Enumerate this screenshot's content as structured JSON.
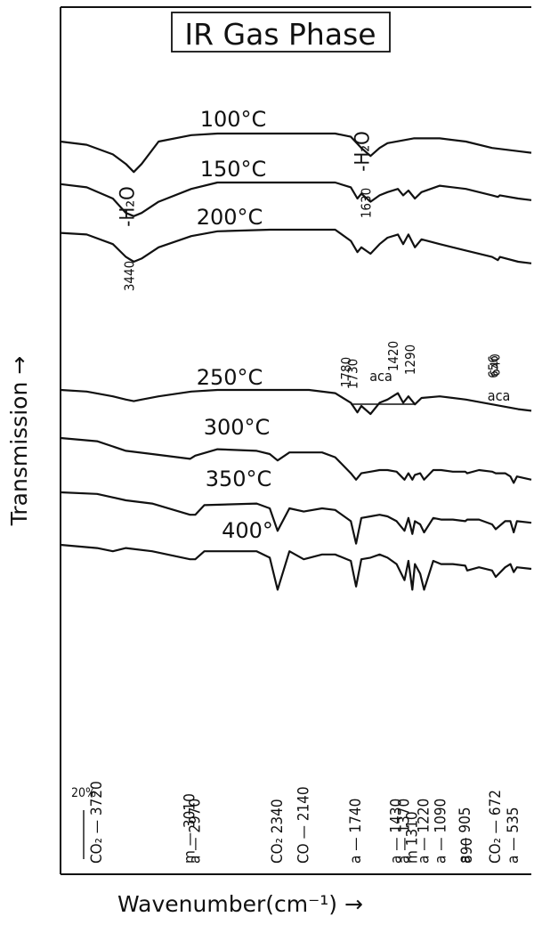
{
  "chart_data": {
    "type": "line",
    "title": "IR Gas Phase",
    "xlabel": "Wavenumber(cm⁻¹) →",
    "ylabel": "Transmission →",
    "xlim": [
      4000,
      400
    ],
    "scale_note": "20%",
    "series": [
      {
        "name": "100°C",
        "x": [
          4000,
          3800,
          3600,
          3500,
          3440,
          3380,
          3250,
          3000,
          2800,
          2400,
          2100,
          1900,
          1780,
          1700,
          1630,
          1560,
          1500,
          1300,
          1100,
          900,
          700,
          500,
          400
        ],
        "y": [
          84,
          82,
          76,
          70,
          65,
          70,
          84,
          88,
          89,
          89,
          89,
          89,
          87,
          80,
          75,
          80,
          83,
          86,
          86,
          84,
          80,
          78,
          77
        ]
      },
      {
        "name": "150°C",
        "x": [
          4000,
          3800,
          3600,
          3500,
          3440,
          3380,
          3250,
          3000,
          2800,
          2400,
          2100,
          1900,
          1780,
          1730,
          1700,
          1630,
          1560,
          1500,
          1420,
          1380,
          1340,
          1290,
          1240,
          1100,
          900,
          700,
          656,
          640,
          500,
          400
        ],
        "y": [
          75,
          73,
          66,
          57,
          55,
          57,
          64,
          72,
          76,
          76,
          76,
          76,
          73,
          66,
          69,
          64,
          68,
          70,
          72,
          68,
          71,
          66,
          70,
          74,
          72,
          68,
          67,
          68,
          66,
          65
        ]
      },
      {
        "name": "200°C",
        "x": [
          4000,
          3800,
          3600,
          3500,
          3440,
          3380,
          3250,
          3000,
          2800,
          2400,
          2100,
          1900,
          1780,
          1730,
          1700,
          1630,
          1560,
          1500,
          1420,
          1380,
          1340,
          1290,
          1240,
          1100,
          900,
          700,
          656,
          640,
          500,
          400
        ],
        "y": [
          67,
          66,
          60,
          52,
          49,
          51,
          58,
          65,
          68,
          69,
          69,
          69,
          62,
          55,
          58,
          54,
          60,
          64,
          66,
          60,
          66,
          58,
          63,
          60,
          56,
          52,
          50,
          52,
          49,
          48
        ]
      },
      {
        "name": "250°C",
        "x": [
          4000,
          3800,
          3600,
          3500,
          3440,
          3380,
          3250,
          3000,
          2800,
          2400,
          2100,
          1900,
          1780,
          1730,
          1700,
          1630,
          1560,
          1500,
          1420,
          1380,
          1340,
          1290,
          1240,
          1100,
          900,
          700,
          500,
          400
        ],
        "y": [
          46,
          45,
          42,
          40,
          39,
          40,
          42,
          45,
          46,
          46,
          46,
          44,
          38,
          32,
          36,
          31,
          38,
          40,
          44,
          38,
          42,
          37,
          41,
          42,
          40,
          37,
          34,
          33
        ]
      },
      {
        "name": "300°C",
        "x": [
          4000,
          3720,
          3500,
          3300,
          3010,
          2970,
          2800,
          2500,
          2400,
          2340,
          2250,
          2140,
          2000,
          1900,
          1780,
          1740,
          1700,
          1630,
          1560,
          1500,
          1430,
          1370,
          1340,
          1310,
          1290,
          1250,
          1220,
          1150,
          1090,
          1000,
          905,
          890,
          800,
          700,
          672,
          600,
          560,
          535,
          510,
          400
        ],
        "y": [
          40,
          38,
          32,
          30,
          27,
          29,
          33,
          32,
          30,
          26,
          31,
          31,
          31,
          28,
          18,
          14,
          18,
          19,
          20,
          20,
          19,
          14,
          18,
          14,
          17,
          18,
          14,
          20,
          20,
          19,
          19,
          18,
          20,
          19,
          18,
          18,
          16,
          12,
          16,
          14
        ]
      },
      {
        "name": "350°C",
        "x": [
          4000,
          3720,
          3500,
          3300,
          3010,
          2970,
          2900,
          2500,
          2400,
          2340,
          2250,
          2140,
          2000,
          1900,
          1780,
          1740,
          1700,
          1630,
          1560,
          1500,
          1430,
          1370,
          1340,
          1310,
          1290,
          1250,
          1220,
          1150,
          1090,
          1000,
          905,
          890,
          800,
          700,
          672,
          600,
          560,
          535,
          510,
          400
        ],
        "y": [
          30,
          29,
          25,
          23,
          16,
          16,
          22,
          23,
          20,
          6,
          20,
          18,
          20,
          19,
          12,
          -2,
          14,
          15,
          16,
          15,
          12,
          6,
          14,
          4,
          12,
          10,
          5,
          14,
          13,
          13,
          12,
          13,
          13,
          10,
          7,
          12,
          12,
          5,
          12,
          11
        ]
      },
      {
        "name": "400°",
        "x": [
          4000,
          3720,
          3600,
          3500,
          3300,
          3010,
          2970,
          2900,
          2500,
          2400,
          2340,
          2250,
          2140,
          2000,
          1900,
          1780,
          1740,
          1700,
          1630,
          1560,
          1500,
          1430,
          1370,
          1340,
          1310,
          1290,
          1250,
          1220,
          1150,
          1090,
          1000,
          905,
          890,
          800,
          700,
          672,
          600,
          560,
          535,
          510,
          400
        ],
        "y": [
          14,
          12,
          10,
          12,
          10,
          5,
          5,
          10,
          10,
          6,
          -14,
          10,
          5,
          8,
          8,
          4,
          -12,
          5,
          6,
          8,
          6,
          2,
          -8,
          4,
          -14,
          2,
          -4,
          -14,
          4,
          2,
          2,
          1,
          -2,
          0,
          -2,
          -6,
          0,
          2,
          -3,
          0,
          -1
        ]
      }
    ],
    "series_labels": [
      "100°C",
      "150°C",
      "200°C",
      "250°C",
      "300°C",
      "350°C",
      "400°"
    ],
    "top_annotations": [
      {
        "text": "-H₂O",
        "x": 3440
      },
      {
        "text": "-H₂O",
        "x": 1630
      },
      {
        "text": "3440",
        "x": 3440
      },
      {
        "text": "1630",
        "x": 1630
      },
      {
        "text": "1780",
        "x": 1780
      },
      {
        "text": "1730",
        "x": 1730
      },
      {
        "text": "1420",
        "x": 1420
      },
      {
        "text": "1290",
        "x": 1290
      },
      {
        "text": "aca",
        "x": 1550
      },
      {
        "text": "656",
        "x": 656
      },
      {
        "text": "640",
        "x": 640
      },
      {
        "text": "aca",
        "x": 648
      }
    ],
    "bottom_annotations": [
      {
        "text": "CO₂ — 3720",
        "x": 3720
      },
      {
        "text": "m — 3010",
        "x": 3010
      },
      {
        "text": "a — 2970",
        "x": 2970
      },
      {
        "text": "CO₂ 2340",
        "x": 2340
      },
      {
        "text": "CO — 2140",
        "x": 2140
      },
      {
        "text": "a — 1740",
        "x": 1740
      },
      {
        "text": "a — 1430",
        "x": 1430
      },
      {
        "text": "a — 1370",
        "x": 1370
      },
      {
        "text": "m 1310",
        "x": 1310
      },
      {
        "text": "a — 1220",
        "x": 1220
      },
      {
        "text": "a — 1090",
        "x": 1090
      },
      {
        "text": "a — 905",
        "x": 905
      },
      {
        "text": "890",
        "x": 890
      },
      {
        "text": "CO₂ — 672",
        "x": 672
      },
      {
        "text": "a — 535",
        "x": 535
      }
    ]
  }
}
